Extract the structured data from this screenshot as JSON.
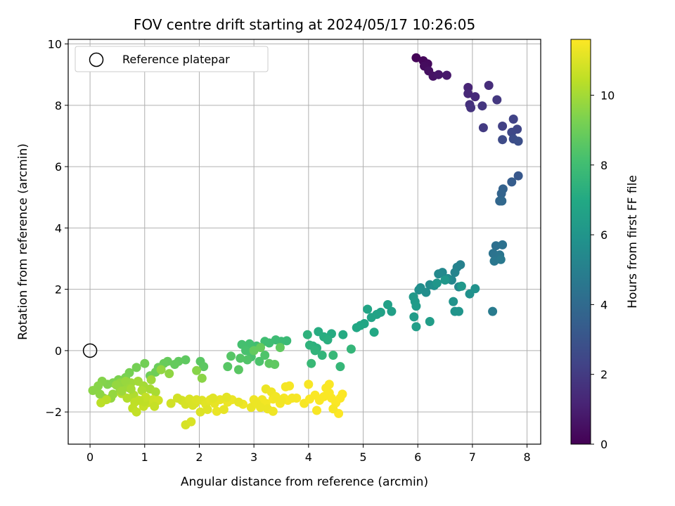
{
  "chart_data": {
    "type": "scatter",
    "title": "FOV centre drift starting at 2024/05/17 10:26:05",
    "xlabel": "Angular distance from reference (arcmin)",
    "ylabel": "Rotation from reference (arcmin)",
    "xlim": [
      -0.4,
      8.25
    ],
    "ylim": [
      -3.05,
      10.15
    ],
    "xticks": [
      0,
      1,
      2,
      3,
      4,
      5,
      6,
      7,
      8
    ],
    "yticks": [
      -2,
      0,
      2,
      4,
      6,
      8,
      10
    ],
    "grid": true,
    "legend": {
      "position": "top-left",
      "entries": [
        "Reference platepar"
      ]
    },
    "reference_point": {
      "x": 0,
      "y": 0
    },
    "colorbar": {
      "label": "Hours from first FF file",
      "range": [
        0,
        11.6
      ],
      "ticks": [
        0,
        2,
        4,
        6,
        8,
        10
      ],
      "colormap": "viridis"
    },
    "series": [
      {
        "points": [
          [
            5.97,
            9.55,
            0.1
          ],
          [
            6.1,
            9.45,
            0.2
          ],
          [
            6.18,
            9.35,
            0.3
          ],
          [
            6.12,
            9.28,
            0.35
          ],
          [
            6.2,
            9.12,
            0.5
          ],
          [
            6.28,
            8.95,
            0.6
          ],
          [
            6.38,
            9.0,
            0.7
          ],
          [
            6.53,
            8.98,
            0.8
          ],
          [
            6.92,
            8.58,
            1.2
          ],
          [
            6.92,
            8.38,
            1.3
          ],
          [
            7.05,
            8.28,
            1.4
          ],
          [
            7.3,
            8.65,
            1.5
          ],
          [
            6.95,
            8.02,
            1.6
          ],
          [
            6.97,
            7.92,
            1.7
          ],
          [
            7.18,
            7.98,
            1.8
          ],
          [
            7.45,
            8.18,
            1.9
          ],
          [
            7.2,
            7.27,
            2.0
          ],
          [
            7.55,
            7.32,
            2.2
          ],
          [
            7.75,
            7.55,
            2.3
          ],
          [
            7.82,
            7.22,
            2.4
          ],
          [
            7.72,
            7.12,
            2.5
          ],
          [
            7.55,
            6.88,
            2.6
          ],
          [
            7.75,
            6.9,
            2.7
          ],
          [
            7.84,
            6.83,
            2.8
          ],
          [
            7.84,
            5.7,
            3.2
          ],
          [
            7.72,
            5.5,
            3.4
          ],
          [
            7.56,
            5.27,
            3.6
          ],
          [
            7.53,
            5.12,
            3.7
          ],
          [
            7.5,
            4.88,
            3.8
          ],
          [
            7.54,
            4.88,
            3.9
          ],
          [
            7.43,
            3.42,
            4.2
          ],
          [
            7.55,
            3.45,
            4.3
          ],
          [
            7.38,
            3.17,
            4.4
          ],
          [
            7.5,
            3.12,
            4.5
          ],
          [
            7.4,
            2.92,
            4.6
          ],
          [
            7.52,
            2.97,
            4.7
          ],
          [
            7.37,
            1.28,
            4.8
          ],
          [
            6.78,
            2.8,
            5.0
          ],
          [
            6.72,
            2.72,
            5.1
          ],
          [
            6.68,
            2.55,
            5.2
          ],
          [
            6.62,
            2.3,
            5.3
          ],
          [
            6.75,
            2.08,
            5.35
          ],
          [
            6.45,
            2.55,
            5.4
          ],
          [
            6.38,
            2.5,
            5.45
          ],
          [
            6.55,
            2.35,
            5.5
          ],
          [
            6.22,
            2.15,
            5.55
          ],
          [
            6.05,
            2.05,
            5.6
          ],
          [
            6.15,
            1.9,
            5.65
          ],
          [
            6.02,
            1.98,
            5.7
          ],
          [
            6.3,
            2.12,
            5.75
          ],
          [
            6.95,
            1.85,
            5.8
          ],
          [
            7.05,
            2.02,
            5.85
          ],
          [
            6.65,
            1.6,
            5.9
          ],
          [
            6.68,
            1.28,
            5.95
          ],
          [
            6.75,
            1.28,
            6.0
          ],
          [
            6.35,
            2.2,
            6.05
          ],
          [
            6.5,
            2.3,
            6.1
          ],
          [
            6.8,
            2.1,
            6.15
          ],
          [
            5.92,
            1.75,
            6.2
          ],
          [
            5.95,
            1.6,
            6.25
          ],
          [
            5.97,
            1.45,
            6.3
          ],
          [
            5.93,
            1.1,
            6.35
          ],
          [
            6.22,
            0.95,
            6.4
          ],
          [
            5.97,
            0.78,
            6.45
          ],
          [
            5.52,
            1.28,
            6.5
          ],
          [
            5.45,
            1.5,
            6.55
          ],
          [
            5.32,
            1.25,
            6.6
          ],
          [
            5.25,
            1.18,
            6.65
          ],
          [
            5.15,
            1.08,
            6.7
          ],
          [
            5.08,
            1.35,
            6.75
          ],
          [
            5.02,
            0.88,
            6.8
          ],
          [
            4.95,
            0.82,
            6.85
          ],
          [
            4.88,
            0.75,
            6.9
          ],
          [
            5.2,
            0.6,
            6.95
          ],
          [
            4.63,
            0.52,
            7.05
          ],
          [
            4.42,
            0.55,
            7.1
          ],
          [
            4.18,
            0.62,
            7.15
          ],
          [
            4.28,
            0.45,
            7.2
          ],
          [
            4.35,
            0.35,
            7.25
          ],
          [
            4.08,
            0.15,
            7.3
          ],
          [
            4.15,
            0.08,
            7.35
          ],
          [
            3.98,
            0.52,
            7.4
          ],
          [
            4.02,
            0.18,
            7.45
          ],
          [
            4.12,
            0.0,
            7.5
          ],
          [
            4.25,
            -0.15,
            7.55
          ],
          [
            4.78,
            0.05,
            7.6
          ],
          [
            4.58,
            -0.52,
            7.65
          ],
          [
            4.45,
            -0.15,
            7.7
          ],
          [
            4.05,
            -0.42,
            7.75
          ],
          [
            3.6,
            0.32,
            7.8
          ],
          [
            3.5,
            0.3,
            7.85
          ],
          [
            3.4,
            0.35,
            7.9
          ],
          [
            3.28,
            0.25,
            7.95
          ],
          [
            3.2,
            0.3,
            8.0
          ],
          [
            3.05,
            0.15,
            8.05
          ],
          [
            2.92,
            0.22,
            8.1
          ],
          [
            2.78,
            0.2,
            8.15
          ],
          [
            2.85,
            0.0,
            8.2
          ],
          [
            2.95,
            -0.2,
            8.25
          ],
          [
            3.1,
            -0.35,
            8.3
          ],
          [
            3.2,
            -0.15,
            8.35
          ],
          [
            2.88,
            -0.3,
            8.4
          ],
          [
            2.75,
            -0.25,
            8.45
          ],
          [
            2.58,
            -0.18,
            8.5
          ],
          [
            2.52,
            -0.52,
            8.55
          ],
          [
            2.72,
            -0.62,
            8.6
          ],
          [
            3.28,
            -0.42,
            8.65
          ],
          [
            3.38,
            -0.45,
            8.7
          ],
          [
            3.48,
            0.1,
            8.75
          ],
          [
            3.0,
            0.0,
            8.8
          ],
          [
            3.12,
            0.1,
            8.85
          ],
          [
            2.02,
            -0.35,
            8.6
          ],
          [
            2.08,
            -0.52,
            8.65
          ],
          [
            1.75,
            -0.3,
            8.7
          ],
          [
            1.62,
            -0.35,
            8.75
          ],
          [
            1.55,
            -0.45,
            8.8
          ],
          [
            1.42,
            -0.35,
            8.85
          ],
          [
            1.35,
            -0.42,
            8.9
          ],
          [
            1.25,
            -0.55,
            8.95
          ],
          [
            1.2,
            -0.7,
            9.0
          ],
          [
            1.1,
            -0.82,
            9.05
          ],
          [
            1.0,
            -0.42,
            9.1
          ],
          [
            0.85,
            -0.55,
            9.15
          ],
          [
            0.72,
            -0.72,
            9.2
          ],
          [
            0.65,
            -0.88,
            9.25
          ],
          [
            0.52,
            -0.95,
            9.3
          ],
          [
            0.42,
            -1.05,
            9.35
          ],
          [
            0.32,
            -1.1,
            9.4
          ],
          [
            0.22,
            -1.0,
            9.45
          ],
          [
            0.15,
            -1.15,
            9.5
          ],
          [
            0.05,
            -1.3,
            9.55
          ],
          [
            0.18,
            -1.42,
            9.6
          ],
          [
            0.25,
            -1.55,
            9.65
          ],
          [
            0.38,
            -1.55,
            9.7
          ],
          [
            0.42,
            -1.42,
            9.75
          ],
          [
            0.55,
            -1.25,
            9.8
          ],
          [
            0.65,
            -1.15,
            9.85
          ],
          [
            0.75,
            -1.05,
            9.9
          ],
          [
            0.88,
            -1.0,
            9.95
          ],
          [
            0.98,
            -1.15,
            10.0
          ],
          [
            1.1,
            -1.25,
            10.05
          ],
          [
            1.2,
            -1.35,
            10.1
          ],
          [
            0.95,
            -1.3,
            10.15
          ],
          [
            0.8,
            -1.45,
            10.2
          ],
          [
            0.68,
            -1.55,
            10.25
          ],
          [
            0.58,
            -1.4,
            10.3
          ],
          [
            0.3,
            -1.6,
            10.35
          ],
          [
            0.2,
            -1.7,
            10.4
          ],
          [
            0.82,
            -1.68,
            10.45
          ],
          [
            0.78,
            -1.88,
            10.5
          ],
          [
            0.85,
            -2.0,
            10.55
          ],
          [
            0.98,
            -1.82,
            10.6
          ],
          [
            1.05,
            -1.7,
            10.65
          ],
          [
            1.15,
            -1.6,
            10.7
          ],
          [
            1.25,
            -1.62,
            10.75
          ],
          [
            1.48,
            -1.72,
            10.8
          ],
          [
            1.68,
            -1.62,
            10.85
          ],
          [
            1.75,
            -1.75,
            10.9
          ],
          [
            1.82,
            -1.58,
            10.95
          ],
          [
            1.92,
            -1.72,
            11.0
          ],
          [
            2.05,
            -1.62,
            11.05
          ],
          [
            2.12,
            -1.75,
            11.1
          ],
          [
            2.2,
            -1.6,
            11.15
          ],
          [
            1.75,
            -2.42,
            10.9
          ],
          [
            1.85,
            -2.32,
            10.95
          ],
          [
            2.02,
            -2.0,
            11.0
          ],
          [
            2.28,
            -1.72,
            11.2
          ],
          [
            2.38,
            -1.6,
            11.2
          ],
          [
            2.32,
            -1.98,
            11.25
          ],
          [
            2.52,
            -1.68,
            11.3
          ],
          [
            2.6,
            -1.6,
            11.3
          ],
          [
            2.8,
            -1.75,
            11.35
          ],
          [
            3.0,
            -1.6,
            11.35
          ],
          [
            3.15,
            -1.6,
            11.4
          ],
          [
            3.22,
            -1.72,
            11.4
          ],
          [
            3.35,
            -1.58,
            11.45
          ],
          [
            3.48,
            -1.72,
            11.45
          ],
          [
            3.55,
            -1.55,
            11.5
          ],
          [
            3.62,
            -1.62,
            11.5
          ],
          [
            3.78,
            -1.55,
            11.5
          ],
          [
            3.92,
            -1.72,
            11.5
          ],
          [
            4.02,
            -1.58,
            11.55
          ],
          [
            4.12,
            -1.45,
            11.55
          ],
          [
            4.2,
            -1.62,
            11.55
          ],
          [
            4.28,
            -1.5,
            11.55
          ],
          [
            4.38,
            -1.38,
            11.55
          ],
          [
            4.42,
            -1.55,
            11.55
          ],
          [
            4.5,
            -1.7,
            11.55
          ],
          [
            4.58,
            -1.55,
            11.58
          ],
          [
            4.62,
            -1.42,
            11.58
          ],
          [
            4.55,
            -2.05,
            11.58
          ],
          [
            4.15,
            -1.95,
            11.5
          ],
          [
            4.45,
            -1.9,
            11.5
          ],
          [
            3.65,
            -1.15,
            11.48
          ],
          [
            3.58,
            -1.18,
            11.45
          ],
          [
            4.0,
            -1.1,
            11.5
          ],
          [
            4.32,
            -1.22,
            11.55
          ],
          [
            4.38,
            -1.1,
            11.55
          ],
          [
            3.22,
            -1.25,
            11.3
          ],
          [
            3.32,
            -1.35,
            11.35
          ],
          [
            3.4,
            -1.5,
            11.4
          ],
          [
            3.25,
            -1.9,
            11.3
          ],
          [
            3.35,
            -1.98,
            11.35
          ],
          [
            2.95,
            -1.85,
            11.25
          ],
          [
            2.72,
            -1.68,
            11.2
          ],
          [
            2.45,
            -1.92,
            11.2
          ],
          [
            2.5,
            -1.52,
            11.15
          ],
          [
            3.05,
            -1.72,
            11.3
          ],
          [
            3.12,
            -1.85,
            11.3
          ],
          [
            3.5,
            -1.62,
            11.4
          ],
          [
            3.7,
            -1.55,
            11.45
          ],
          [
            1.6,
            -1.55,
            10.8
          ],
          [
            1.88,
            -1.78,
            10.95
          ],
          [
            1.95,
            -1.6,
            11.0
          ],
          [
            2.15,
            -1.92,
            11.05
          ],
          [
            2.25,
            -1.55,
            11.1
          ],
          [
            0.55,
            -1.05,
            9.7
          ],
          [
            0.48,
            -1.12,
            9.75
          ],
          [
            0.65,
            -1.0,
            9.8
          ],
          [
            0.72,
            -1.22,
            9.85
          ],
          [
            0.58,
            -1.32,
            9.9
          ],
          [
            1.0,
            -1.68,
            10.5
          ],
          [
            1.02,
            -1.52,
            10.55
          ],
          [
            1.18,
            -1.82,
            10.6
          ],
          [
            0.9,
            -1.62,
            10.45
          ],
          [
            0.75,
            -1.25,
            10.0
          ],
          [
            1.12,
            -0.95,
            9.9
          ],
          [
            1.3,
            -0.62,
            9.7
          ],
          [
            1.45,
            -0.75,
            9.65
          ],
          [
            1.95,
            -0.65,
            9.5
          ],
          [
            2.05,
            -0.9,
            9.55
          ]
        ]
      }
    ]
  }
}
